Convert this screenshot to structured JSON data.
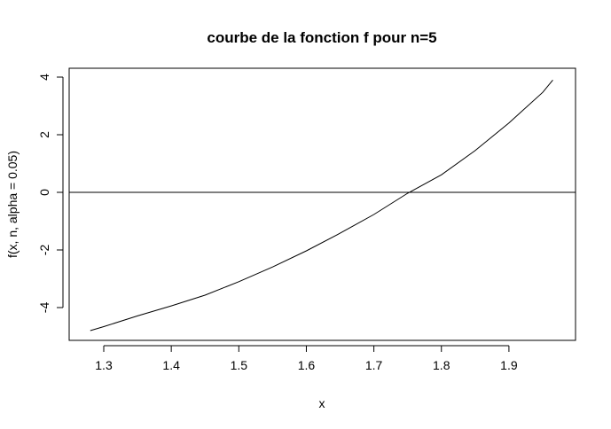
{
  "chart_data": {
    "type": "line",
    "title": "courbe de la fonction f pour n=5",
    "xlabel": "x",
    "ylabel": "f(x, n, alpha = 0.05)",
    "xlim": [
      1.28,
      1.965
    ],
    "ylim": [
      -4.8,
      3.9
    ],
    "x_ticks": [
      "1.3",
      "1.4",
      "1.5",
      "1.6",
      "1.7",
      "1.8",
      "1.9"
    ],
    "y_ticks": [
      "-4",
      "-2",
      "0",
      "2",
      "4"
    ],
    "hline": 0,
    "grid": false,
    "legend": "none",
    "series": [
      {
        "x": [
          1.28,
          1.3,
          1.35,
          1.4,
          1.45,
          1.5,
          1.55,
          1.6,
          1.65,
          1.7,
          1.75,
          1.8,
          1.85,
          1.9,
          1.95,
          1.965
        ],
        "y": [
          -4.8,
          -4.66,
          -4.29,
          -3.94,
          -3.57,
          -3.1,
          -2.59,
          -2.03,
          -1.42,
          -0.77,
          -0.03,
          0.61,
          1.45,
          2.41,
          3.47,
          3.9
        ],
        "color": "#000000"
      }
    ]
  }
}
